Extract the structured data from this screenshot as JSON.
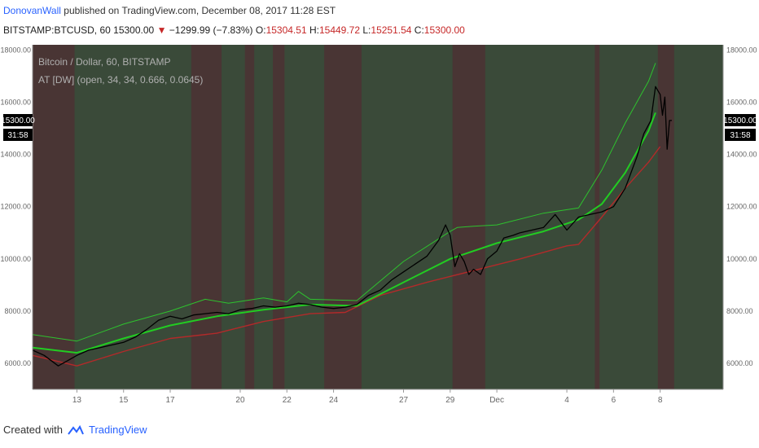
{
  "header": {
    "author": "DonovanWall",
    "published_text": "published on TradingView.com, December 08, 2017 11:28 EST",
    "symbol": "BITSTAMP:BTCUSD, 60",
    "last": "15300.00",
    "change_arrow": "▼",
    "change": "−1299.99 (−7.83%)",
    "o_label": "O:",
    "o": "15304.51",
    "h_label": "H:",
    "h": "15449.72",
    "l_label": "L:",
    "l": "15251.54",
    "c_label": "C:",
    "c": "15300.00"
  },
  "legend": {
    "series_title": "Bitcoin / Dollar, 60, BITSTAMP",
    "indicator": "AT [DW] (open, 34, 34, 0.666, 0.0645)"
  },
  "price_tag": {
    "price": "15300.00",
    "countdown": "31:58"
  },
  "footer": {
    "created_with": "Created with",
    "brand": "TradingView"
  },
  "colors": {
    "background": "#3d3d3d",
    "bull_zone": "#3a4a39",
    "bear_zone": "#4a3434",
    "upper_band": "#2ec22e",
    "mid_line": "#22cc22",
    "lower_band": "#b22a2a",
    "price": "#000000",
    "axis_text": "#666666"
  },
  "chart_data": {
    "type": "line",
    "title": "Bitcoin / Dollar, 60, BITSTAMP",
    "xlabel": "",
    "ylabel": "",
    "x_ticks": [
      "13",
      "15",
      "17",
      "20",
      "22",
      "24",
      "27",
      "29",
      "Dec",
      "4",
      "6",
      "8"
    ],
    "x_tick_days": [
      13,
      15,
      17,
      20,
      22,
      24,
      27,
      29,
      31,
      34,
      36,
      38
    ],
    "xlim_days": [
      11.1,
      40.7
    ],
    "y_ticks": [
      6000,
      8000,
      10000,
      12000,
      14000,
      16000,
      18000
    ],
    "ylim": [
      5000,
      18200
    ],
    "y_tick_labels": [
      "6000.00",
      "8000.00",
      "10000.00",
      "12000.00",
      "14000.00",
      "16000.00",
      "18000.00"
    ],
    "grid": false,
    "x_unit": "day of November 2017 (Dec 1 = 31)",
    "series": [
      {
        "x": [
          11.1,
          11.6,
          12.2,
          12.6,
          13.0,
          13.5,
          14.0,
          14.5,
          15.0,
          15.5,
          16.0,
          16.5,
          17.0,
          17.5,
          18.0,
          18.5,
          19.0,
          19.5,
          20.0,
          20.5,
          21.0,
          21.5,
          22.0,
          22.5,
          23.0,
          23.5,
          24.0,
          24.5,
          25.0,
          25.5,
          26.0,
          26.5,
          27.0,
          27.5,
          28.0,
          28.5,
          28.8,
          29.0,
          29.2,
          29.4,
          29.6,
          29.8,
          30.0,
          30.3,
          30.6,
          31.0,
          31.3,
          31.7,
          32.0,
          32.5,
          33.0,
          33.5,
          34.0,
          34.5,
          35.0,
          35.5,
          36.0,
          36.5,
          37.0,
          37.3,
          37.6,
          37.8,
          38.0,
          38.1,
          38.2,
          38.3,
          38.4,
          38.5
        ],
        "values": [
          6500,
          6300,
          5900,
          6100,
          6300,
          6500,
          6600,
          6700,
          6800,
          7000,
          7300,
          7650,
          7800,
          7700,
          7850,
          7900,
          7950,
          7900,
          8050,
          8100,
          8200,
          8150,
          8200,
          8300,
          8250,
          8150,
          8100,
          8150,
          8250,
          8600,
          8800,
          9200,
          9500,
          9800,
          10100,
          10700,
          11300,
          10900,
          9700,
          10200,
          9900,
          9400,
          9600,
          9400,
          10000,
          10300,
          10800,
          10900,
          11000,
          11100,
          11200,
          11700,
          11100,
          11600,
          11700,
          11800,
          12000,
          12700,
          13900,
          14800,
          15300,
          16600,
          16300,
          15500,
          16200,
          14200,
          15300,
          15300
        ]
      },
      {
        "x": [
          11.1,
          13.0,
          15.0,
          17.0,
          19.0,
          21.0,
          23.0,
          25.0,
          27.0,
          29.0,
          31.0,
          33.0,
          34.5,
          35.5,
          36.5,
          37.5,
          37.8
        ],
        "values": [
          6600,
          6400,
          6950,
          7450,
          7800,
          8050,
          8250,
          8200,
          9100,
          10000,
          10600,
          11050,
          11500,
          12100,
          13300,
          14900,
          15600
        ]
      },
      {
        "x": [
          11.1,
          13.0,
          15.0,
          17.0,
          18.5,
          19.5,
          21.0,
          22.0,
          22.5,
          23.0,
          25.0,
          27.0,
          29.0,
          29.3,
          30.0,
          31.0,
          33.0,
          34.5,
          35.5,
          36.5,
          37.5,
          37.8
        ],
        "values": [
          7100,
          6850,
          7500,
          8000,
          8450,
          8300,
          8500,
          8350,
          8750,
          8450,
          8400,
          9900,
          11050,
          11200,
          11250,
          11300,
          11750,
          11950,
          13400,
          15200,
          16800,
          17500
        ]
      },
      {
        "x": [
          11.1,
          13.0,
          15.0,
          17.0,
          19.0,
          21.0,
          23.0,
          24.5,
          26.0,
          28.0,
          30.0,
          32.0,
          34.0,
          34.5,
          35.5,
          36.5,
          37.5,
          38.0
        ],
        "values": [
          6300,
          5900,
          6450,
          6950,
          7150,
          7600,
          7900,
          7950,
          8600,
          9100,
          9550,
          10000,
          10500,
          10550,
          11600,
          12700,
          13700,
          14300
        ]
      }
    ]
  }
}
